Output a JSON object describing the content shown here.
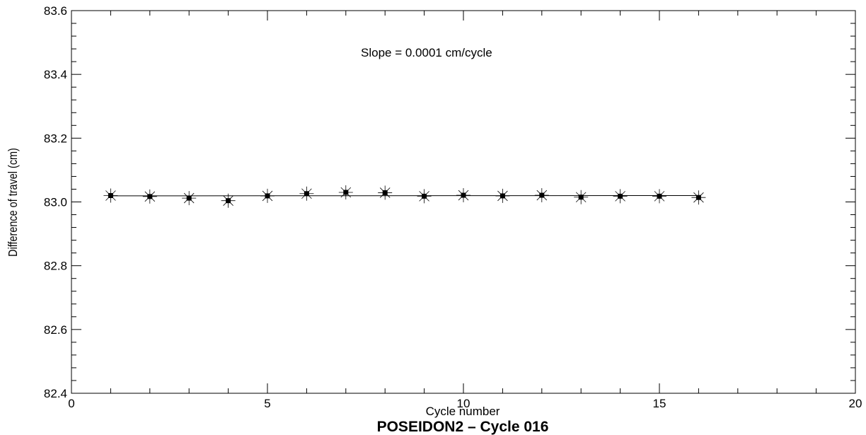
{
  "chart_data": {
    "type": "line",
    "title": "POSEIDON2 – Cycle 016",
    "xlabel": "Cycle number",
    "ylabel": "Difference of travel  (cm)",
    "annotation": "Slope =  0.0001 cm/cycle",
    "xlim": [
      0,
      20
    ],
    "ylim": [
      82.4,
      83.6
    ],
    "x_ticks": [
      0,
      5,
      10,
      15,
      20
    ],
    "y_ticks": [
      "82.4",
      "82.6",
      "82.8",
      "83.0",
      "83.2",
      "83.4",
      "83.6"
    ],
    "grid": false,
    "series": [
      {
        "marker": "star",
        "x": [
          1,
          2,
          3,
          4,
          5,
          6,
          7,
          8,
          9,
          10,
          11,
          12,
          13,
          14,
          15,
          16
        ],
        "y": [
          83.02,
          83.017,
          83.012,
          83.004,
          83.019,
          83.026,
          83.03,
          83.029,
          83.018,
          83.021,
          83.019,
          83.021,
          83.015,
          83.018,
          83.018,
          83.014
        ]
      }
    ],
    "fit_line": {
      "x": [
        1,
        16
      ],
      "y": [
        83.019,
        83.02
      ]
    }
  }
}
